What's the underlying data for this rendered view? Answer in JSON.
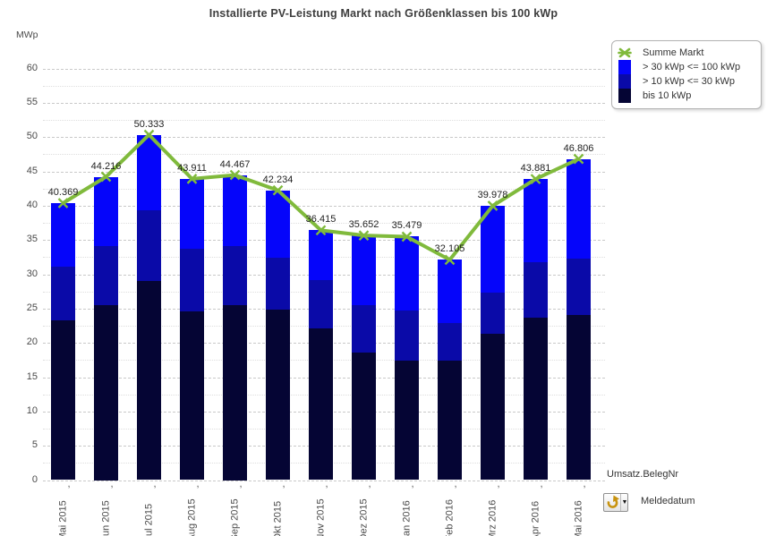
{
  "title": "Installierte PV-Leistung Markt nach Größenklassen bis 100 kWp",
  "y_axis_unit": "MWp",
  "legend": {
    "line_label": "Summe Markt",
    "items": [
      {
        "label": "> 30 kWp <= 100 kWp",
        "color": "#0505fa"
      },
      {
        "label": "> 10 kWp <= 30 kWp",
        "color": "#0a0aa8"
      },
      {
        "label": "bis 10 kWp",
        "color": "#050534"
      }
    ]
  },
  "footer": {
    "x_axis_label": "Umsatz.BelegNr",
    "dropdown_label": "Meldedatum",
    "dropdown_icon": "refresh-rotate-icon",
    "dropdown_icon_color": "#c8930f"
  },
  "chart_data": {
    "type": "bar",
    "subtype": "stacked-bars-with-line-overlay",
    "title": "Installierte PV-Leistung Markt nach Größenklassen bis 100 kWp",
    "xlabel": "Umsatz.BelegNr",
    "ylabel": "MWp",
    "ylim": [
      0,
      60
    ],
    "y_major_step": 5,
    "y_minor_step": 2.5,
    "grid": "horizontal dashed major, dotted minor",
    "legend_position": "top-right",
    "categories": [
      "Mai 2015",
      "Jun 2015",
      "Jul 2015",
      "Aug 2015",
      "Sep 2015",
      "Okt 2015",
      "Nov 2015",
      "Dez 2015",
      "Jan 2016",
      "Feb 2016",
      "Mrz 2016",
      "Apr 2016",
      "Mai 2016"
    ],
    "series": [
      {
        "name": "bis 10 kWp",
        "color": "#050534",
        "values": [
          23.3,
          25.5,
          29.0,
          24.6,
          25.5,
          24.9,
          22.1,
          18.6,
          17.4,
          17.4,
          21.3,
          23.7,
          24.1
        ]
      },
      {
        "name": "> 10 kWp <= 30 kWp",
        "color": "#0a0aa8",
        "values": [
          7.8,
          8.6,
          10.3,
          9.1,
          8.6,
          7.5,
          7.1,
          6.9,
          7.3,
          5.5,
          6.0,
          8.1,
          8.2
        ]
      },
      {
        "name": "> 30 kWp <= 100 kWp",
        "color": "#0505fa",
        "values": [
          9.269,
          10.116,
          11.033,
          10.211,
          10.367,
          9.834,
          7.215,
          10.152,
          10.779,
          9.205,
          12.678,
          12.081,
          14.506
        ]
      }
    ],
    "line_series": {
      "name": "Summe Markt",
      "color": "#80ba3c",
      "marker": "x-cross",
      "values": [
        40.369,
        44.216,
        50.333,
        43.911,
        44.467,
        42.234,
        36.415,
        35.652,
        35.479,
        32.105,
        39.978,
        43.881,
        46.806
      ]
    },
    "point_labels": [
      "40.369",
      "44.216",
      "50.333",
      "43.911",
      "44.467",
      "42.234",
      "36.415",
      "35.652",
      "35.479",
      "32.105",
      "39.978",
      "43.881",
      "46.806"
    ]
  }
}
